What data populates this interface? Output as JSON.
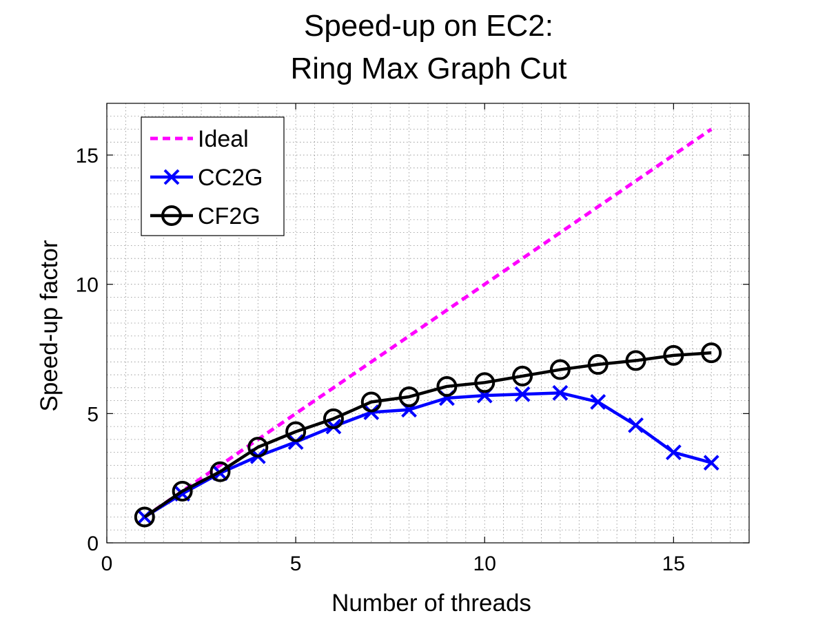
{
  "chart_data": {
    "type": "line",
    "title": [
      "Speed-up on EC2:",
      "Ring Max Graph Cut"
    ],
    "xlabel": "Number of threads",
    "ylabel": "Speed-up factor",
    "xlim": [
      0,
      17
    ],
    "ylim": [
      0,
      17
    ],
    "xticks": [
      0,
      5,
      10,
      15
    ],
    "yticks": [
      0,
      5,
      10,
      15
    ],
    "grid": "on (major and minor, dotted)",
    "legend_location": "top-left",
    "series": [
      {
        "name": "Ideal",
        "style": "dashed",
        "color": "#ff00ff",
        "marker": "none",
        "x": [
          1,
          2,
          3,
          4,
          5,
          6,
          7,
          8,
          9,
          10,
          11,
          12,
          13,
          14,
          15,
          16
        ],
        "values": [
          1,
          2,
          3,
          4,
          5,
          6,
          7,
          8,
          9,
          10,
          11,
          12,
          13,
          14,
          15,
          16
        ]
      },
      {
        "name": "CC2G",
        "style": "solid",
        "color": "#0000ff",
        "marker": "x",
        "x": [
          1,
          2,
          3,
          4,
          5,
          6,
          7,
          8,
          9,
          10,
          11,
          12,
          13,
          14,
          15,
          16
        ],
        "values": [
          1.0,
          1.9,
          2.7,
          3.35,
          3.9,
          4.5,
          5.05,
          5.15,
          5.6,
          5.7,
          5.75,
          5.8,
          5.45,
          4.55,
          3.5,
          3.1
        ]
      },
      {
        "name": "CF2G",
        "style": "solid",
        "color": "#000000",
        "marker": "o",
        "x": [
          1,
          2,
          3,
          4,
          5,
          6,
          7,
          8,
          9,
          10,
          11,
          12,
          13,
          14,
          15,
          16
        ],
        "values": [
          1.0,
          2.0,
          2.75,
          3.7,
          4.3,
          4.8,
          5.45,
          5.65,
          6.05,
          6.2,
          6.45,
          6.7,
          6.9,
          7.05,
          7.25,
          7.35
        ]
      }
    ]
  }
}
